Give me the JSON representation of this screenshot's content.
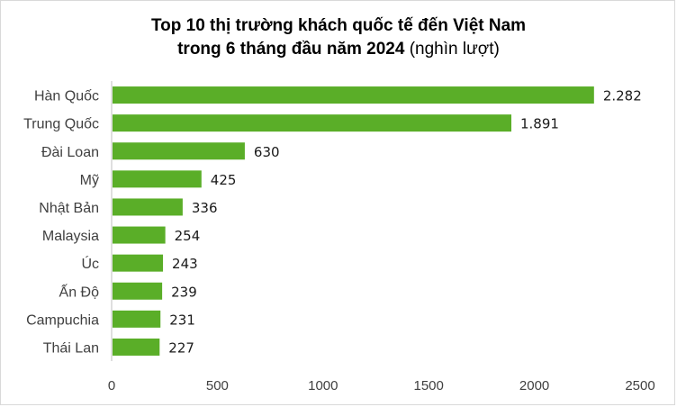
{
  "title": {
    "line1": "Top 10 thị trường khách quốc tế đến Việt Nam",
    "line2_bold": "trong 6 tháng đầu năm 2024",
    "line2_normal": "(nghìn lượt)"
  },
  "colors": {
    "bar": "#5aae28",
    "axis": "#bfbfbf"
  },
  "chart_data": {
    "type": "bar",
    "orientation": "horizontal",
    "title": "Top 10 thị trường khách quốc tế đến Việt Nam trong 6 tháng đầu năm 2024 (nghìn lượt)",
    "categories": [
      "Hàn Quốc",
      "Trung Quốc",
      "Đài Loan",
      "Mỹ",
      "Nhật Bản",
      "Malaysia",
      "Úc",
      "Ấn Độ",
      "Campuchia",
      "Thái Lan"
    ],
    "values": [
      2282,
      1891,
      630,
      425,
      336,
      254,
      243,
      239,
      231,
      227
    ],
    "value_labels": [
      "2.282",
      "1.891",
      "630",
      "425",
      "336",
      "254",
      "243",
      "239",
      "231",
      "227"
    ],
    "xlim": [
      0,
      2500
    ],
    "xticks": [
      0,
      500,
      1000,
      1500,
      2000,
      2500
    ],
    "xtick_labels": [
      "0",
      "500",
      "1000",
      "1500",
      "2000",
      "2500"
    ],
    "grid": false,
    "legend": "none"
  }
}
